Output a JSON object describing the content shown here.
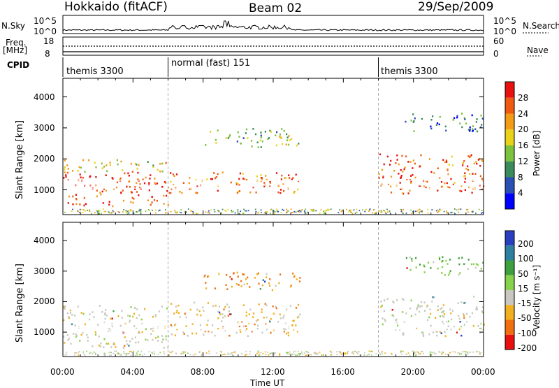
{
  "header": {
    "station": "Hokkaido (fitACF)",
    "beam": "Beam 02",
    "date": "29/Sep/2009"
  },
  "strip": {
    "nsky_label": "N.Sky",
    "nsky_ticks": [
      "10^5",
      "10^0"
    ],
    "nsearch_ticks": [
      "10^5",
      "10^0"
    ],
    "nsearch_label": "N.Search",
    "freq_label": "Freq.",
    "freq_unit": "[MHz]",
    "freq_ticks": [
      "18",
      "8"
    ],
    "nave_ticks": [
      "60",
      "0"
    ],
    "nave_label": "Nave",
    "cpid_label": "CPID"
  },
  "cpid_segments": [
    {
      "label": "themis 3300",
      "start_hr": 0,
      "end_hr": 6
    },
    {
      "label": "normal (fast) 151",
      "start_hr": 6,
      "end_hr": 18
    },
    {
      "label": "themis 3300",
      "start_hr": 18,
      "end_hr": 24
    }
  ],
  "chart_data": [
    {
      "type": "heatmap",
      "ylabel": "Slant Range [km]",
      "xlabel": "Time UT",
      "x_ticks": [
        "00:00",
        "04:00",
        "08:00",
        "12:00",
        "16:00",
        "20:00",
        "00:00"
      ],
      "x_range_hr": [
        0,
        24
      ],
      "y_ticks": [
        1000,
        2000,
        3000,
        4000
      ],
      "ylim": [
        200,
        4600
      ],
      "colorbar": {
        "label": "Power [dB]",
        "ticks": [
          4,
          8,
          12,
          16,
          20,
          24,
          28
        ],
        "range": [
          0,
          32
        ],
        "colors": [
          "#0000ff",
          "#2a4fb5",
          "#3b8c5a",
          "#7cc23c",
          "#e8d21a",
          "#f39a16",
          "#f05a10",
          "#e81010"
        ]
      },
      "bands": [
        {
          "t0": 0,
          "t1": 6,
          "r0": 500,
          "r1": 1600,
          "value": 28
        },
        {
          "t0": 0,
          "t1": 6,
          "r0": 1600,
          "r1": 2000,
          "value": 18
        },
        {
          "t0": 6,
          "t1": 13.5,
          "r0": 900,
          "r1": 1600,
          "value": 25
        },
        {
          "t0": 8,
          "t1": 13.5,
          "r0": 2400,
          "r1": 3000,
          "value": 14
        },
        {
          "t0": 18,
          "t1": 24,
          "r0": 900,
          "r1": 2200,
          "value": 26
        },
        {
          "t0": 19.5,
          "t1": 24,
          "r0": 2900,
          "r1": 3500,
          "value": 8
        }
      ]
    },
    {
      "type": "heatmap",
      "ylabel": "Slant Range [km]",
      "xlabel": "Time UT",
      "x_ticks": [
        "00:00",
        "04:00",
        "08:00",
        "12:00",
        "16:00",
        "20:00",
        "00:00"
      ],
      "x_range_hr": [
        0,
        24
      ],
      "y_ticks": [
        1000,
        2000,
        3000,
        4000
      ],
      "ylim": [
        200,
        4600
      ],
      "colorbar": {
        "label": "Velocity [m s⁻¹]",
        "ticks": [
          "200",
          "100",
          "50",
          "15",
          "-15",
          "-50",
          "-100",
          "-200"
        ],
        "colors": [
          "#2a3fbf",
          "#2e7fa0",
          "#3f9f3f",
          "#86d24a",
          "#c8c8c0",
          "#f0b020",
          "#f07010",
          "#e81010"
        ]
      },
      "bands": [
        {
          "t0": 0,
          "t1": 6,
          "r0": 500,
          "r1": 1900,
          "value": 0
        },
        {
          "t0": 6,
          "t1": 13.5,
          "r0": 900,
          "r1": 2000,
          "value": -20
        },
        {
          "t0": 8,
          "t1": 13.5,
          "r0": 2400,
          "r1": 3000,
          "value": -30
        },
        {
          "t0": 18,
          "t1": 24,
          "r0": 900,
          "r1": 2200,
          "value": 0
        },
        {
          "t0": 19.5,
          "t1": 24,
          "r0": 2900,
          "r1": 3500,
          "value": 30
        }
      ]
    }
  ]
}
